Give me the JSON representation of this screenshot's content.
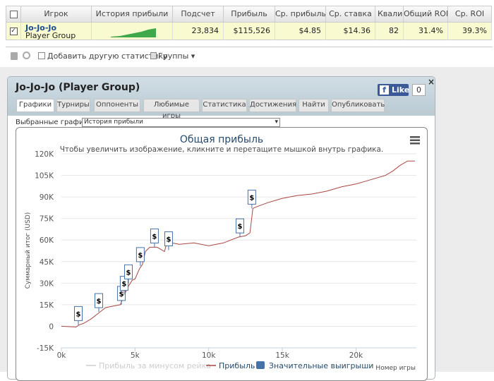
{
  "table": {
    "headers": [
      "Игрок",
      "История прибыли",
      "Подсчет",
      "Прибыль",
      "Ср. прибыль",
      "Ср. ставка",
      "Квалиф",
      "Общий ROI",
      "Ср. ROI"
    ],
    "row": {
      "name": "Jo-Jo-Jo",
      "group": "Player Group",
      "cells": [
        "23,834",
        "$115,526",
        "$4.85",
        "$14.36",
        "82",
        "31.4%",
        "39.3%"
      ]
    }
  },
  "toolbar": {
    "add": "Добавить другую статистику",
    "groups": "Группы"
  },
  "panel": {
    "title": "Jo-Jo-Jo (Player Group)",
    "like": "Like",
    "like_count": 0,
    "tabs": [
      "Графики",
      "Турниры",
      "Оппоненты",
      "Любимые игры",
      "Статистика",
      "Достижения",
      "Найти",
      "Опубликовать"
    ],
    "select_label": "Выбранные графики:",
    "select_value": "История прибыли"
  },
  "chart_data": {
    "type": "line",
    "title": "Общая прибыль",
    "subtitle": "Чтобы увеличить изображение, кликните и перетащите мышкой внутрь графика.",
    "y_label": "Суммарный итог (USD)",
    "x_label": "Номер игры",
    "xlim": [
      0,
      24100
    ],
    "ylim": [
      -15000,
      120000
    ],
    "grid": true,
    "xticks": [
      {
        "value": 0,
        "label": "0k"
      },
      {
        "value": 5000,
        "label": "5k"
      },
      {
        "value": 10000,
        "label": "10k"
      },
      {
        "value": 15000,
        "label": "15k"
      },
      {
        "value": 20000,
        "label": "20k"
      }
    ],
    "yticks": [
      {
        "value": -15000,
        "label": "-15K"
      },
      0,
      {
        "value": 15000,
        "label": "15K"
      },
      {
        "value": 30000,
        "label": "30K"
      },
      {
        "value": 45000,
        "label": "45K"
      },
      {
        "value": 60000,
        "label": "60K"
      },
      {
        "value": 75000,
        "label": "75K"
      },
      {
        "value": 90000,
        "label": "90K"
      },
      {
        "value": 105000,
        "label": "105K"
      },
      {
        "value": 120000,
        "label": "120K"
      }
    ],
    "series": [
      {
        "name": "Прибыль за минусом рейка",
        "color": "#cccccc",
        "visible": false
      },
      {
        "name": "Прибыль",
        "color": "#aa4643",
        "visible": true,
        "x": [
          0,
          1000,
          1200,
          1500,
          2000,
          2500,
          3000,
          3500,
          4000,
          4200,
          4500,
          4800,
          5000,
          5300,
          5500,
          5700,
          6000,
          6500,
          7000,
          7200,
          7500,
          8000,
          9000,
          10000,
          11000,
          12000,
          12500,
          12800,
          13000,
          13200,
          14000,
          15000,
          16000,
          17000,
          18000,
          19000,
          20000,
          21000,
          22000,
          22500,
          23000,
          23500,
          24000
        ],
        "values": [
          0,
          -500,
          1000,
          2000,
          5000,
          9000,
          13000,
          14000,
          15000,
          20000,
          27000,
          32000,
          33000,
          40000,
          43000,
          52000,
          55000,
          55000,
          52000,
          60000,
          58000,
          57000,
          58000,
          56000,
          58000,
          62000,
          63000,
          65000,
          82000,
          83000,
          86000,
          89000,
          91000,
          92000,
          94000,
          97000,
          99000,
          102000,
          105000,
          108000,
          112000,
          115000,
          115000
        ]
      },
      {
        "name": "Значительные выигрыши",
        "color": "#4572a7",
        "visible": true,
        "marker_label": "$",
        "x": [
          1150,
          2540,
          4070,
          4260,
          4550,
          5360,
          6320,
          7280,
          12120,
          12930
        ],
        "values": [
          1000,
          10000,
          15000,
          22000,
          30000,
          42000,
          55000,
          53000,
          62000,
          82000
        ]
      }
    ]
  }
}
